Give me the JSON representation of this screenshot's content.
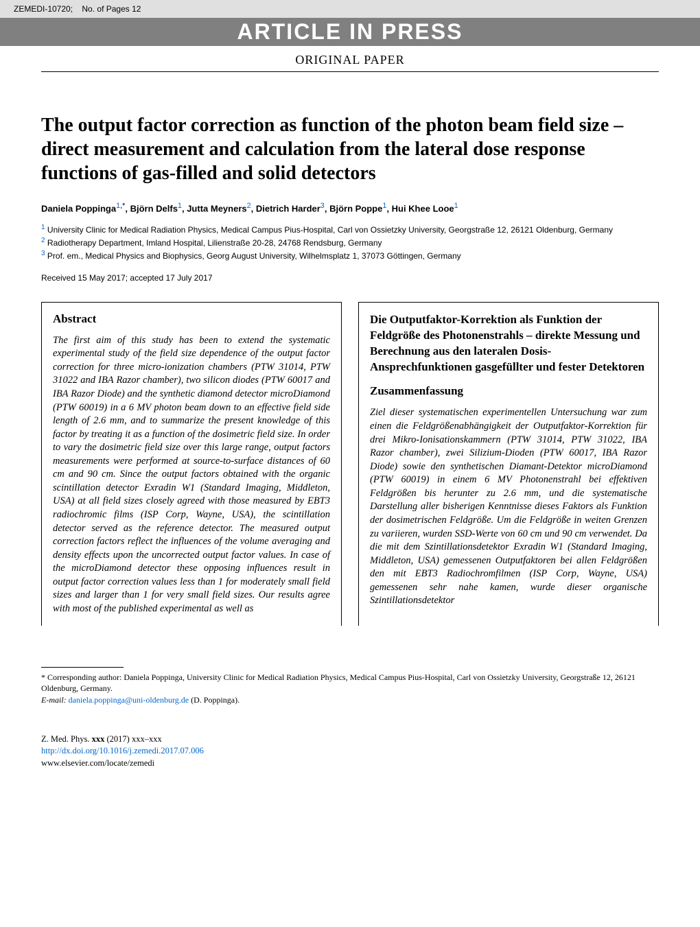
{
  "topbar": {
    "ref": "ZEMEDI-10720;",
    "pages": "No. of Pages 12"
  },
  "banner": {
    "text": "ARTICLE IN PRESS"
  },
  "paper_type": "ORIGINAL PAPER",
  "title": "The output factor correction as function of the photon beam field size – direct measurement and calculation from the lateral dose response functions of gas-filled and solid detectors",
  "authors": [
    {
      "name": "Daniela Poppinga",
      "aff": "1",
      "corr": true
    },
    {
      "name": "Björn Delfs",
      "aff": "1"
    },
    {
      "name": "Jutta Meyners",
      "aff": "2"
    },
    {
      "name": "Dietrich Harder",
      "aff": "3"
    },
    {
      "name": "Björn Poppe",
      "aff": "1"
    },
    {
      "name": "Hui Khee Looe",
      "aff": "1"
    }
  ],
  "affiliations": [
    {
      "num": "1",
      "text": "University Clinic for Medical Radiation Physics, Medical Campus Pius-Hospital, Carl von Ossietzky University, Georgstraße 12, 26121 Oldenburg, Germany"
    },
    {
      "num": "2",
      "text": "Radiotherapy Department, Imland Hospital, Lilienstraße 20-28, 24768 Rendsburg, Germany"
    },
    {
      "num": "3",
      "text": "Prof. em., Medical Physics and Biophysics, Georg August University, Wilhelmsplatz 1, 37073 Göttingen, Germany"
    }
  ],
  "received": "Received 15 May 2017; accepted 17 July 2017",
  "abstract_en": {
    "heading": "Abstract",
    "body": "The first aim of this study has been to extend the systematic experimental study of the field size dependence of the output factor correction for three micro-ionization chambers (PTW 31014, PTW 31022 and IBA Razor chamber), two silicon diodes (PTW 60017 and IBA Razor Diode) and the synthetic diamond detector microDiamond (PTW 60019) in a 6 MV photon beam down to an effective field side length of 2.6 mm, and to summarize the present knowledge of this factor by treating it as a function of the dosimetric field size. In order to vary the dosimetric field size over this large range, output factors measurements were performed at source-to-surface distances of 60 cm and 90 cm. Since the output factors obtained with the organic scintillation detector Exradin W1 (Standard Imaging, Middleton, USA) at all field sizes closely agreed with those measured by EBT3 radiochromic films (ISP Corp, Wayne, USA), the scintillation detector served as the reference detector. The measured output correction factors reflect the influences of the volume averaging and density effects upon the uncorrected output factor values. In case of the microDiamond detector these opposing influences result in output factor correction values less than 1 for moderately small field sizes and larger than 1 for very small field sizes. Our results agree with most of the published experimental as well as"
  },
  "abstract_de": {
    "title": "Die Outputfaktor-Korrektion als Funktion der Feldgröße des Photonenstrahls – direkte Messung und Berechnung aus den lateralen Dosis-Ansprechfunktionen gasgefüllter und fester Detektoren",
    "heading": "Zusammenfassung",
    "body": "Ziel dieser systematischen experimentellen Untersuchung war zum einen die Feldgrößenabhängigkeit der Outputfaktor-Korrektion für drei Mikro-Ionisationskammern (PTW 31014, PTW 31022, IBA Razor chamber), zwei Silizium-Dioden (PTW 60017, IBA Razor Diode) sowie den synthetischen Diamant-Detektor microDiamond (PTW 60019) in einem 6 MV Photonenstrahl bei effektiven Feldgrößen bis herunter zu 2.6 mm, und die systematische Darstellung aller bisherigen Kenntnisse dieses Faktors als Funktion der dosimetrischen Feldgröße. Um die Feldgröße in weiten Grenzen zu variieren, wurden SSD-Werte von 60 cm und 90 cm verwendet. Da die mit dem Szintillationsdetektor Exradin W1 (Standard Imaging, Middleton, USA) gemessenen Outputfaktoren bei allen Feldgrößen den mit EBT3 Radiochromfilmen (ISP Corp, Wayne, USA) gemessenen sehr nahe kamen, wurde dieser organische Szintillationsdetektor"
  },
  "footnote": {
    "corr": "Corresponding author: Daniela Poppinga, University Clinic for Medical Radiation Physics, Medical Campus Pius-Hospital, Carl von Ossietzky University, Georgstraße 12, 26121 Oldenburg, Germany.",
    "email_label": "E-mail:",
    "email": "daniela.poppinga@uni-oldenburg.de",
    "email_name": "(D. Poppinga)."
  },
  "footer": {
    "journal": "Z. Med. Phys. ",
    "vol": "xxx",
    "year": " (2017) xxx–xxx",
    "doi": "http://dx.doi.org/10.1016/j.zemedi.2017.07.006",
    "site": "www.elsevier.com/locate/zemedi"
  }
}
